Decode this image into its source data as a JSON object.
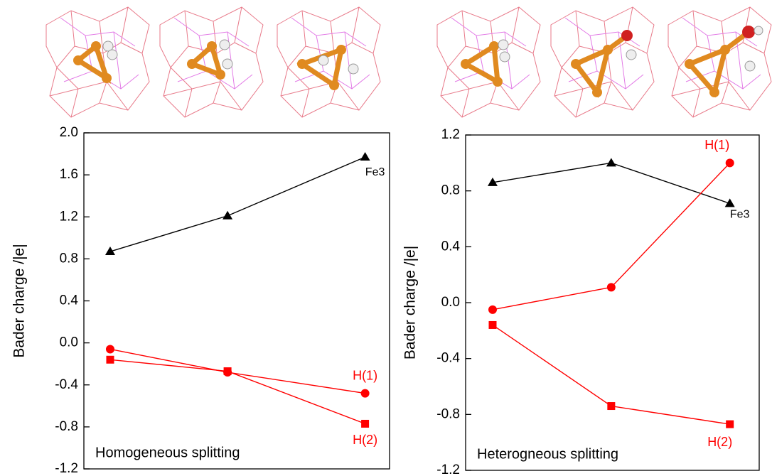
{
  "chart_data": [
    {
      "type": "line",
      "annotation": "Homogeneous splitting",
      "ylabel": "Bader charge /|e|",
      "categories": [
        null,
        null,
        null
      ],
      "ylim": [
        -1.2,
        2.0
      ],
      "yticks": [
        {
          "value": -1.2,
          "label": "-1.2"
        },
        {
          "value": -0.8,
          "label": "-0.8"
        },
        {
          "value": -0.4,
          "label": "-0.4"
        },
        {
          "value": 0,
          "label": "0.0"
        },
        0.4,
        0.8,
        1.2,
        1.6,
        {
          "value": 2.0,
          "label": "2.0"
        }
      ],
      "series": [
        {
          "name": "Fe3",
          "color": "#000000",
          "marker": "triangle",
          "values": [
            0.87,
            1.21,
            1.77
          ]
        },
        {
          "name": "H(1)",
          "color": "#ff0000",
          "marker": "circle",
          "values": [
            -0.06,
            -0.28,
            -0.48
          ]
        },
        {
          "name": "H(2)",
          "color": "#ff0000",
          "marker": "square",
          "values": [
            -0.16,
            -0.27,
            -0.77
          ]
        }
      ]
    },
    {
      "type": "line",
      "annotation": "Heterogneous splitting",
      "ylabel": "Bader charge /|e|",
      "categories": [
        null,
        null,
        null
      ],
      "ylim": [
        -1.2,
        1.2
      ],
      "yticks": [
        -1.2,
        -0.8,
        -0.4,
        {
          "value": 0,
          "label": "0.0"
        },
        0.4,
        0.8,
        1.2
      ],
      "series": [
        {
          "name": "Fe3",
          "color": "#000000",
          "marker": "triangle",
          "values": [
            0.86,
            1.0,
            0.71
          ]
        },
        {
          "name": "H(1)",
          "color": "#ff0000",
          "marker": "circle",
          "values": [
            -0.05,
            0.11,
            1.0
          ]
        },
        {
          "name": "H(2)",
          "color": "#ff0000",
          "marker": "square",
          "values": [
            -0.16,
            -0.74,
            -0.87
          ]
        }
      ]
    }
  ]
}
